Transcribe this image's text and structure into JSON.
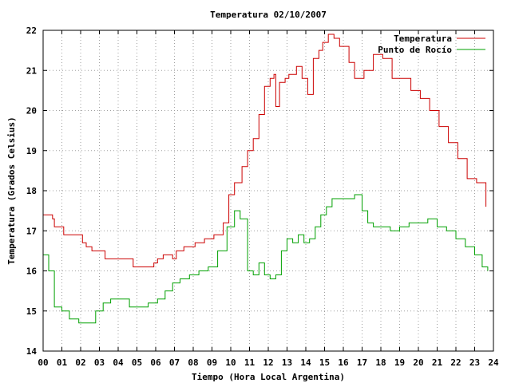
{
  "chart_data": {
    "type": "line",
    "title": "Temperatura 02/10/2007",
    "xlabel": "Tiempo (Hora Local Argentina)",
    "ylabel": "Temperatura (Grados Celsius)",
    "xlim": [
      0,
      24
    ],
    "ylim": [
      14,
      22
    ],
    "x_ticks": [
      "00",
      "01",
      "02",
      "03",
      "04",
      "05",
      "06",
      "07",
      "08",
      "09",
      "10",
      "11",
      "12",
      "13",
      "14",
      "15",
      "16",
      "17",
      "18",
      "19",
      "20",
      "21",
      "22",
      "23",
      "24"
    ],
    "y_ticks": [
      "14",
      "15",
      "16",
      "17",
      "18",
      "19",
      "20",
      "21",
      "22"
    ],
    "grid": true,
    "legend_position": "top-right",
    "series": [
      {
        "name": "Temperatura",
        "color": "#cc0000",
        "x": [
          0,
          0.5,
          0.6,
          1.1,
          1.9,
          2.1,
          2.3,
          2.6,
          3.1,
          3.3,
          4.2,
          4.8,
          5.5,
          5.9,
          6.1,
          6.4,
          6.9,
          7.1,
          7.5,
          8.1,
          8.6,
          9.1,
          9.6,
          9.9,
          10.2,
          10.6,
          10.9,
          11.2,
          11.5,
          11.8,
          12.1,
          12.3,
          12.4,
          12.6,
          12.9,
          13.1,
          13.5,
          13.8,
          14.1,
          14.4,
          14.7,
          14.9,
          15.2,
          15.5,
          15.8,
          16.3,
          16.6,
          17.1,
          17.6,
          18.1,
          18.6,
          19.1,
          19.6,
          20.1,
          20.6,
          21.1,
          21.6,
          22.1,
          22.6,
          23.1,
          23.6
        ],
        "y": [
          17.4,
          17.3,
          17.1,
          16.9,
          16.9,
          16.7,
          16.6,
          16.5,
          16.5,
          16.3,
          16.3,
          16.1,
          16.1,
          16.2,
          16.3,
          16.4,
          16.3,
          16.5,
          16.6,
          16.7,
          16.8,
          16.9,
          17.2,
          17.9,
          18.2,
          18.6,
          19.0,
          19.3,
          19.9,
          20.6,
          20.8,
          20.9,
          20.1,
          20.7,
          20.8,
          20.9,
          21.1,
          20.8,
          20.4,
          21.3,
          21.5,
          21.7,
          21.9,
          21.8,
          21.6,
          21.2,
          20.8,
          21.0,
          21.4,
          21.3,
          20.8,
          20.8,
          20.5,
          20.3,
          20.0,
          19.6,
          19.2,
          18.8,
          18.3,
          18.2,
          17.6
        ]
      },
      {
        "name": "Punto de Rocío",
        "color": "#00a000",
        "x": [
          0,
          0.3,
          0.6,
          1.0,
          1.4,
          1.9,
          2.4,
          2.8,
          3.2,
          3.6,
          4.1,
          4.6,
          5.1,
          5.6,
          6.1,
          6.5,
          6.9,
          7.3,
          7.8,
          8.3,
          8.8,
          9.3,
          9.8,
          10.2,
          10.5,
          10.9,
          11.2,
          11.5,
          11.8,
          12.1,
          12.4,
          12.7,
          13.0,
          13.3,
          13.6,
          13.9,
          14.2,
          14.5,
          14.8,
          15.1,
          15.4,
          15.8,
          16.2,
          16.6,
          17.0,
          17.3,
          17.6,
          18.0,
          18.5,
          19.0,
          19.5,
          20.0,
          20.5,
          21.0,
          21.5,
          22.0,
          22.5,
          23.0,
          23.4,
          23.7
        ],
        "y": [
          16.4,
          16.0,
          15.1,
          15.0,
          14.8,
          14.7,
          14.7,
          15.0,
          15.2,
          15.3,
          15.3,
          15.1,
          15.1,
          15.2,
          15.3,
          15.5,
          15.7,
          15.8,
          15.9,
          16.0,
          16.1,
          16.5,
          17.1,
          17.5,
          17.3,
          16.0,
          15.9,
          16.2,
          15.9,
          15.8,
          15.9,
          16.5,
          16.8,
          16.7,
          16.9,
          16.7,
          16.8,
          17.1,
          17.4,
          17.6,
          17.8,
          17.8,
          17.8,
          17.9,
          17.5,
          17.2,
          17.1,
          17.1,
          17.0,
          17.1,
          17.2,
          17.2,
          17.3,
          17.1,
          17.0,
          16.8,
          16.6,
          16.4,
          16.1,
          16.0
        ]
      }
    ]
  }
}
